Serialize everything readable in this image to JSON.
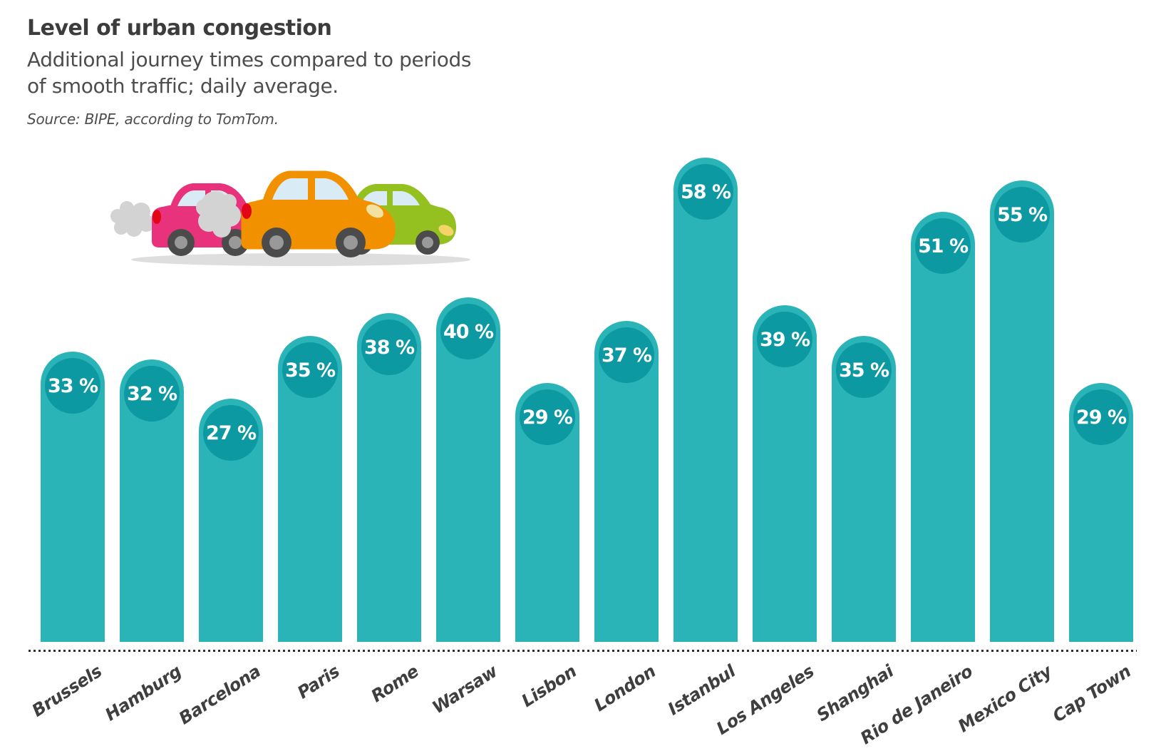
{
  "header": {
    "title": "Level of urban congestion",
    "subtitle_line1": "Additional journey times compared to periods",
    "subtitle_line2": "of smooth traffic; daily average.",
    "source": "Source: BIPE, according to TomTom."
  },
  "chart_data": {
    "type": "bar",
    "title": "Level of urban congestion",
    "subtitle": "Additional journey times compared to periods of smooth traffic; daily average.",
    "unit": "%",
    "categories": [
      "Brussels",
      "Hamburg",
      "Barcelona",
      "Paris",
      "Rome",
      "Warsaw",
      "Lisbon",
      "London",
      "Istanbul",
      "Los Angeles",
      "Shanghai",
      "Rio de Janeiro",
      "Mexico City",
      "Cap Town"
    ],
    "values": [
      33,
      32,
      27,
      35,
      38,
      40,
      29,
      37,
      58,
      39,
      35,
      51,
      55,
      29
    ],
    "value_labels": [
      "33 %",
      "32 %",
      "27 %",
      "35 %",
      "38 %",
      "40 %",
      "29 %",
      "37 %",
      "58 %",
      "39 %",
      "35 %",
      "51 %",
      "55 %",
      "29 %"
    ],
    "xlabel": "",
    "ylabel": "",
    "ylim": [
      0,
      60
    ],
    "grid": false,
    "legend": false,
    "value_label_position": "inside-top-circle",
    "bar_color": "#2ab4b8",
    "badge_color": "#0c99a1",
    "value_text_color": "#ffffff"
  },
  "illustration": {
    "name": "traffic-jam-cars",
    "car_colors": {
      "pink": "#e9327c",
      "orange": "#f29100",
      "green": "#94c120"
    },
    "smoke_color": "#d3d3d3",
    "window_color": "#d9ebf4",
    "wheel_color": "#4b4b4b",
    "hub_color": "#999999",
    "taillight_color": "#e30617",
    "headlight_color": "#f3e1a0",
    "green_headlight_color": "#f4d468",
    "shadow_color": "#dedede"
  },
  "colors": {
    "background": "#ffffff",
    "title_text": "#3c3c3c",
    "subtitle_text": "#4d4d4d",
    "axis_line": "#2f2f2f",
    "axis_label_text": "#3f3f3f"
  },
  "layout_hints": {
    "orientation": "vertical",
    "rounded_bar_tops": true,
    "x_labels_rotated_deg": -33
  }
}
